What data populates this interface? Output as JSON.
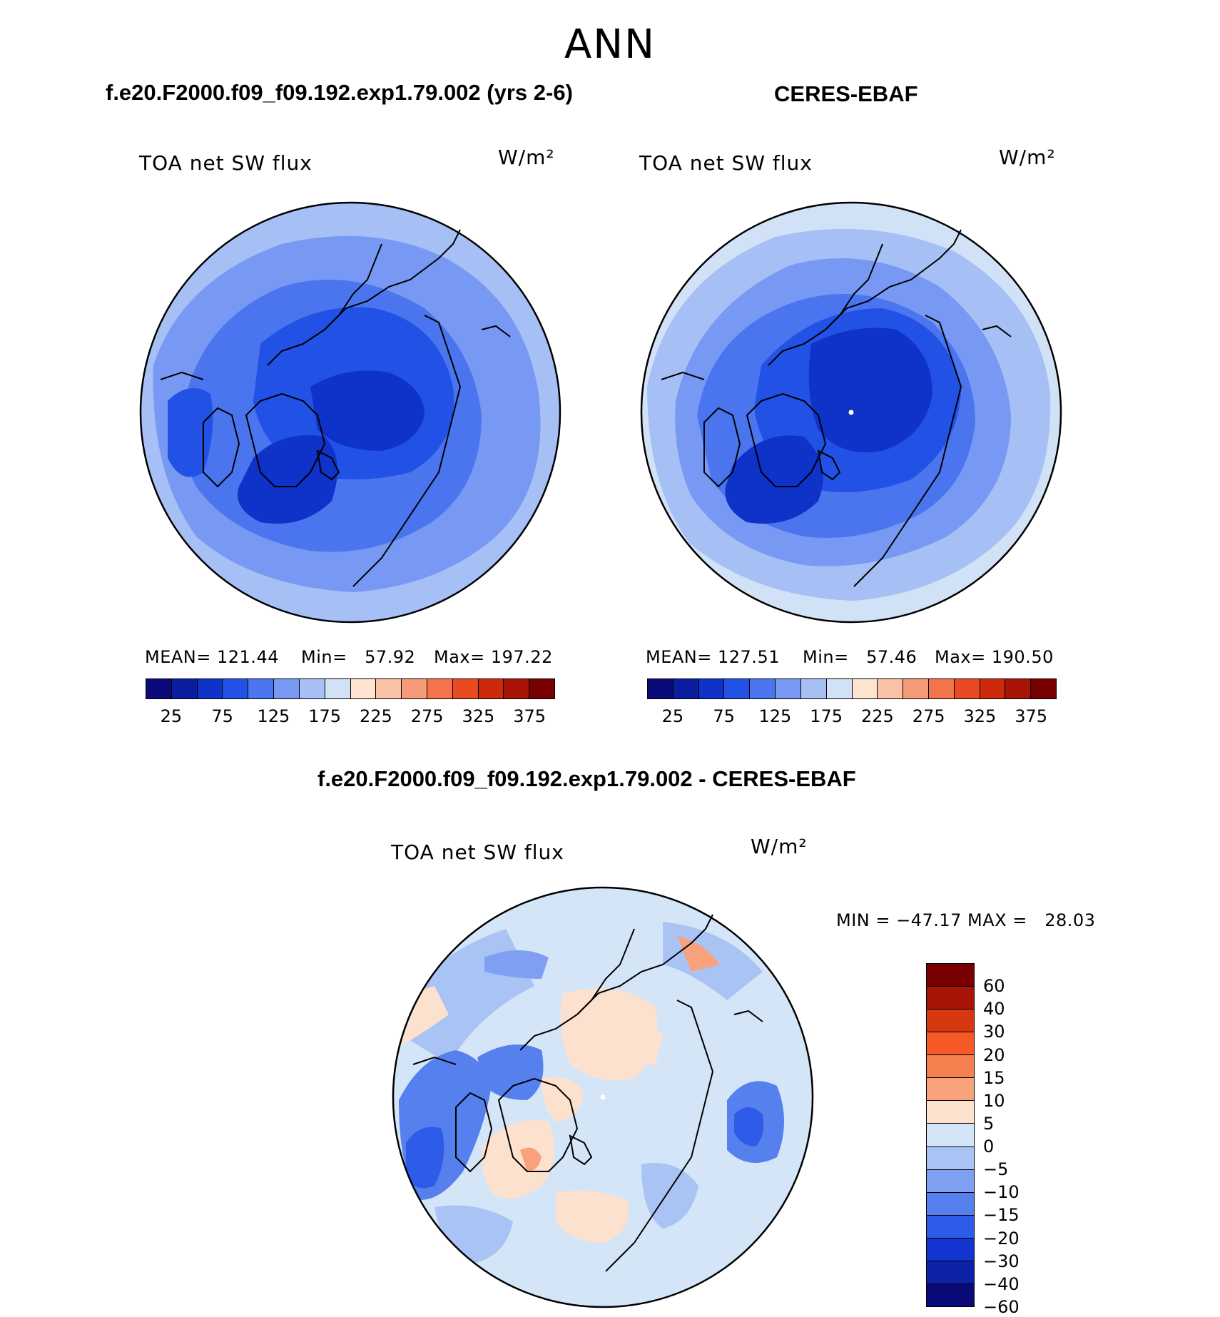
{
  "suptitle": "ANN",
  "panels": {
    "model": {
      "title": "f.e20.F2000.f09_f09.192.exp1.79.002 (yrs 2-6)",
      "var_label": "TOA net SW flux",
      "units": "W/m²",
      "mean_label": "MEAN=",
      "mean_value": "121.44",
      "min_label": "Min=",
      "min_value": "57.92",
      "max_label": "Max=",
      "max_value": "197.22"
    },
    "obs": {
      "title": "CERES-EBAF",
      "var_label": "TOA net SW flux",
      "units": "W/m²",
      "mean_label": "MEAN=",
      "mean_value": "127.51",
      "min_label": "Min=",
      "min_value": "57.46",
      "max_label": "Max=",
      "max_value": "190.50"
    },
    "diff": {
      "title": "f.e20.F2000.f09_f09.192.exp1.79.002 - CERES-EBAF",
      "var_label": "TOA net SW flux",
      "units": "W/m²",
      "minmax_text": "MIN = −47.17 MAX =   28.03"
    }
  },
  "colorbars": {
    "absolute": {
      "colors": [
        "#0a0a78",
        "#0b1ea0",
        "#0f32c8",
        "#2251e6",
        "#4a75ef",
        "#7799f3",
        "#a6bff5",
        "#d2e2f6",
        "#fde3d0",
        "#f9c2a5",
        "#f59b77",
        "#f3744b",
        "#ea4a22",
        "#cd2a0c",
        "#a81405",
        "#780000"
      ],
      "tick_labels": [
        "25",
        "75",
        "125",
        "175",
        "225",
        "275",
        "325",
        "375"
      ]
    },
    "difference": {
      "colors": [
        "#780000",
        "#a81405",
        "#d8380f",
        "#f55a26",
        "#f3804e",
        "#f7a27b",
        "#fde1cf",
        "#d4e5f8",
        "#a9c3f5",
        "#7f9ff2",
        "#5580ee",
        "#2e5ce8",
        "#1234d0",
        "#0e22a8",
        "#0a0a78"
      ],
      "tick_labels": [
        "60",
        "40",
        "30",
        "20",
        "15",
        "10",
        "5",
        "0",
        "−5",
        "−10",
        "−15",
        "−20",
        "−30",
        "−40",
        "−60"
      ]
    }
  }
}
